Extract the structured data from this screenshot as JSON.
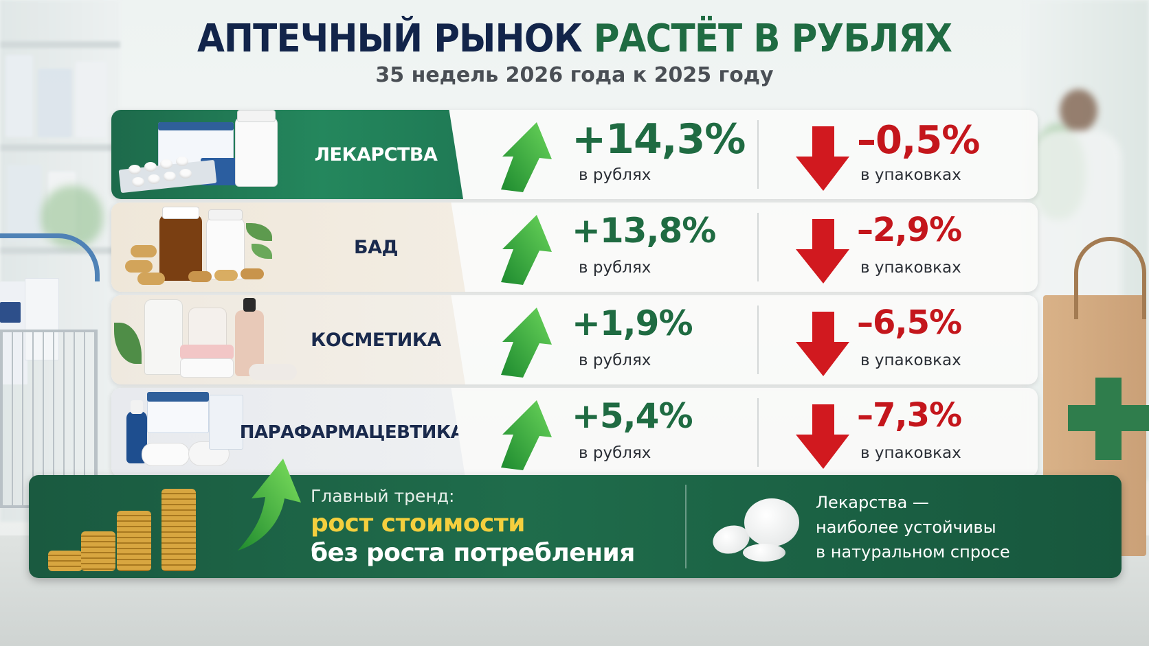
{
  "header": {
    "title_part1": "АПТЕЧНЫЙ РЫНОК",
    "title_part2": "РАСТЁТ В РУБЛЯХ",
    "subtitle": "35 недель 2026 года к 2025 году"
  },
  "rows": [
    {
      "category": "ЛЕКАРСТВА",
      "rub_change": "+14,3%",
      "rub_label": "в рублях",
      "pack_change": "–0,5%",
      "pack_label": "в упаковках"
    },
    {
      "category": "БАД",
      "rub_change": "+13,8%",
      "rub_label": "в рублях",
      "pack_change": "–2,9%",
      "pack_label": "в упаковках"
    },
    {
      "category": "КОСМЕТИКА",
      "rub_change": "+1,9%",
      "rub_label": "в рублях",
      "pack_change": "–6,5%",
      "pack_label": "в упаковках"
    },
    {
      "category": "ПАРАФАРМАЦЕВТИКА",
      "rub_change": "+5,4%",
      "rub_label": "в рублях",
      "pack_change": "–7,3%",
      "pack_label": "в упаковках"
    }
  ],
  "banner": {
    "trend_label": "Главный тренд:",
    "trend_main": "рост стоимости",
    "trend_sub": "без роста потребления",
    "note_line1": "Лекарства —",
    "note_line2": "наиболее устойчивы",
    "note_line3": "в натуральном спросе"
  },
  "colors": {
    "title_navy": "#12244a",
    "title_green": "#1f6b42",
    "up_green": "#1f6b42",
    "down_red": "#c4161c",
    "banner_green": "#1f6c4b",
    "trend_yellow": "#f4cf3e"
  },
  "icons": {
    "up": "arrow-up-icon",
    "down": "arrow-down-icon"
  }
}
